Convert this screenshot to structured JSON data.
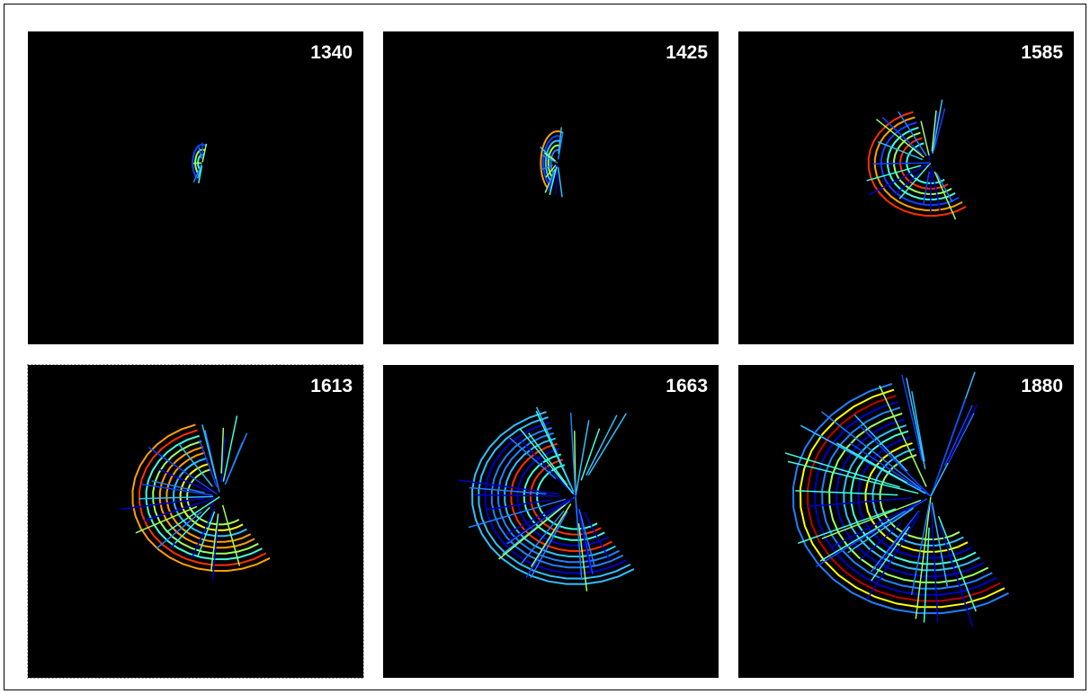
{
  "panels": [
    {
      "year": "1340"
    },
    {
      "year": "1425"
    },
    {
      "year": "1585"
    },
    {
      "year": "1613"
    },
    {
      "year": "1663"
    },
    {
      "year": "1880"
    }
  ]
}
